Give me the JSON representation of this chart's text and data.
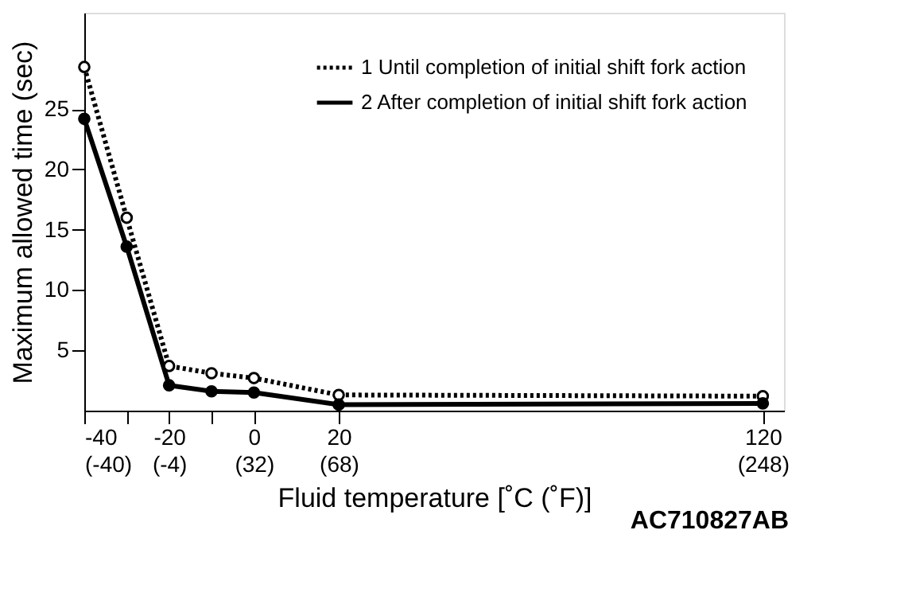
{
  "chart_data": {
    "type": "line",
    "xlabel": "Fluid temperature [˚C (˚F)]",
    "ylabel": "Maximum allowed time (sec)",
    "x": [
      -40,
      -30,
      -20,
      -10,
      0,
      20,
      120
    ],
    "series": [
      {
        "name": "1 Until completion of initial shift fork action",
        "color": "#000000",
        "line_style": "dotted",
        "values": [
          28.5,
          16,
          3.7,
          3.1,
          2.7,
          1.3,
          1.2
        ]
      },
      {
        "name": "2 After completion of initial shift fork action",
        "color": "#000000",
        "line_style": "solid",
        "values": [
          24.2,
          13.6,
          2.1,
          1.6,
          1.5,
          0.5,
          0.6
        ]
      }
    ],
    "xlim": [
      -40,
      125
    ],
    "ylim": [
      0,
      33
    ],
    "xticks": [
      -40,
      {
        "value": -30,
        "label": null
      },
      -20,
      {
        "value": -10,
        "label": null
      },
      0,
      20,
      120
    ],
    "x2lim": [
      -40,
      257
    ],
    "x2ticks": [
      {
        "value": -40,
        "label": "(-40)"
      },
      {
        "value": -4,
        "label": "(-4)"
      },
      {
        "value": 32,
        "label": "(32)"
      },
      {
        "value": 68,
        "label": "(68)"
      },
      {
        "value": 248,
        "label": "(248)"
      }
    ],
    "yticks": [
      5,
      10,
      15,
      20,
      25
    ],
    "marker": "circle",
    "grid": false,
    "legend": "top right",
    "annotations": [
      "AC710827AB"
    ]
  }
}
